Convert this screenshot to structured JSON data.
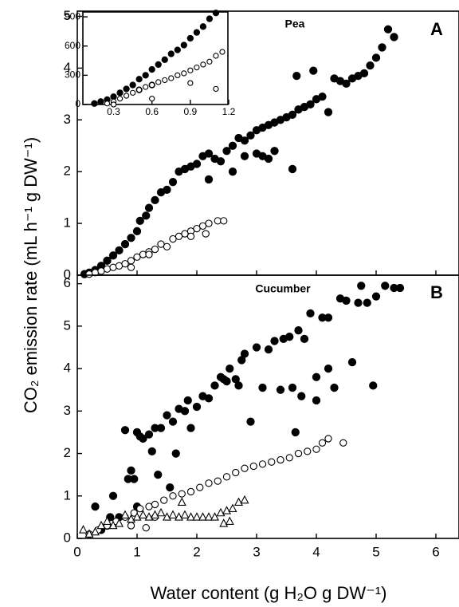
{
  "chart_data": [
    {
      "type": "scatter",
      "title": "Pea",
      "panel_label": "A",
      "xlim": [
        0,
        6.4
      ],
      "ylim": [
        0,
        5.1
      ],
      "xticks": [
        0,
        1,
        2,
        3,
        4,
        5,
        6
      ],
      "yticks": [
        0,
        1,
        2,
        3,
        4,
        5
      ],
      "series": [
        {
          "marker": "filled-circle",
          "color": "#000000",
          "x": [
            0.12,
            0.2,
            0.3,
            0.4,
            0.5,
            0.6,
            0.7,
            0.8,
            0.9,
            1.0,
            1.05,
            1.15,
            1.2,
            1.3,
            1.4,
            1.5,
            1.6,
            1.7,
            1.8,
            1.9,
            2.0,
            2.1,
            2.2,
            2.3,
            2.4,
            2.5,
            2.6,
            2.7,
            2.8,
            2.9,
            3.0,
            3.1,
            3.2,
            3.3,
            3.4,
            3.5,
            3.6,
            3.7,
            3.8,
            3.9,
            4.0,
            4.1,
            4.2,
            4.3,
            4.4,
            4.5,
            4.6,
            4.7,
            4.8,
            4.9,
            5.0,
            5.1,
            5.2,
            5.3,
            3.0,
            3.1,
            3.2,
            2.2,
            2.6,
            2.8,
            3.3,
            3.6,
            3.67,
            3.95
          ],
          "values": [
            0.02,
            0.05,
            0.1,
            0.18,
            0.28,
            0.38,
            0.48,
            0.6,
            0.72,
            0.85,
            1.05,
            1.15,
            1.3,
            1.45,
            1.6,
            1.65,
            1.8,
            2.0,
            2.05,
            2.1,
            2.15,
            2.3,
            2.35,
            2.25,
            2.2,
            2.4,
            2.5,
            2.65,
            2.6,
            2.7,
            2.8,
            2.85,
            2.9,
            2.95,
            3.0,
            3.05,
            3.1,
            3.2,
            3.25,
            3.3,
            3.4,
            3.45,
            3.15,
            3.8,
            3.75,
            3.7,
            3.8,
            3.85,
            3.9,
            4.05,
            4.2,
            4.4,
            4.75,
            4.6,
            2.35,
            2.3,
            2.25,
            1.85,
            2.0,
            2.3,
            2.4,
            2.05,
            3.85,
            3.95
          ]
        },
        {
          "marker": "open-circle",
          "color": "#000000",
          "x": [
            0.2,
            0.3,
            0.4,
            0.5,
            0.6,
            0.7,
            0.8,
            0.9,
            1.0,
            1.1,
            1.2,
            1.3,
            1.4,
            1.5,
            1.6,
            1.7,
            1.8,
            1.9,
            2.0,
            2.1,
            2.2,
            2.35,
            2.45,
            2.15,
            1.9,
            0.9,
            1.2
          ],
          "values": [
            0.02,
            0.05,
            0.08,
            0.12,
            0.15,
            0.18,
            0.22,
            0.28,
            0.35,
            0.4,
            0.45,
            0.5,
            0.6,
            0.55,
            0.7,
            0.75,
            0.8,
            0.85,
            0.9,
            0.95,
            1.0,
            1.05,
            1.05,
            0.8,
            0.75,
            0.15,
            0.4
          ]
        }
      ]
    },
    {
      "type": "scatter",
      "title": "Cucumber",
      "panel_label": "B",
      "x_label": "Water content (g H₂O g  DW⁻¹)",
      "y_label": "CO₂ emission rate (mL h⁻¹ g DW⁻¹)",
      "xlim": [
        0,
        6.4
      ],
      "ylim": [
        0,
        6.2
      ],
      "xticks": [
        0,
        1,
        2,
        3,
        4,
        5,
        6
      ],
      "yticks": [
        0,
        1,
        2,
        3,
        4,
        5,
        6
      ],
      "series": [
        {
          "marker": "filled-circle",
          "color": "#000000",
          "x": [
            0.3,
            0.4,
            0.5,
            0.6,
            0.7,
            0.8,
            0.85,
            0.9,
            0.95,
            1.0,
            1.05,
            1.1,
            1.2,
            1.25,
            1.3,
            1.35,
            1.4,
            1.5,
            1.55,
            1.6,
            1.7,
            1.8,
            1.85,
            1.9,
            2.0,
            2.1,
            2.2,
            2.3,
            2.4,
            2.45,
            2.5,
            2.55,
            2.65,
            2.7,
            2.75,
            2.8,
            2.9,
            3.0,
            3.1,
            3.2,
            3.3,
            3.4,
            3.45,
            3.55,
            3.6,
            3.7,
            3.8,
            3.9,
            4.0,
            4.1,
            4.2,
            4.3,
            4.4,
            4.5,
            4.6,
            4.7,
            4.75,
            4.85,
            4.95,
            5.0,
            5.15,
            5.3,
            5.4,
            3.65,
            3.75,
            4.0,
            4.2,
            1.0,
            0.55,
            1.65
          ],
          "values": [
            0.75,
            0.2,
            0.3,
            1.0,
            0.5,
            2.55,
            1.4,
            1.6,
            1.4,
            2.5,
            2.4,
            2.35,
            2.45,
            2.05,
            2.6,
            1.5,
            2.6,
            2.9,
            1.2,
            2.75,
            3.05,
            3.0,
            3.25,
            2.6,
            3.1,
            3.35,
            3.3,
            3.6,
            3.8,
            3.75,
            3.7,
            4.0,
            3.75,
            3.6,
            4.2,
            4.35,
            2.75,
            4.5,
            3.55,
            4.45,
            4.65,
            3.5,
            4.7,
            4.75,
            3.55,
            4.9,
            4.7,
            5.3,
            3.25,
            5.2,
            5.2,
            3.55,
            5.65,
            5.6,
            4.15,
            5.55,
            5.95,
            5.55,
            3.6,
            5.7,
            5.95,
            5.9,
            5.9,
            2.5,
            3.35,
            3.8,
            4.0,
            0.75,
            0.5,
            2.0
          ]
        },
        {
          "marker": "open-circle",
          "color": "#000000",
          "x": [
            0.2,
            0.35,
            0.5,
            0.65,
            0.8,
            0.95,
            1.05,
            1.2,
            1.3,
            1.45,
            1.6,
            1.75,
            1.9,
            2.05,
            2.2,
            2.35,
            2.5,
            2.65,
            2.8,
            2.95,
            3.1,
            3.25,
            3.4,
            3.55,
            3.7,
            3.85,
            4.0,
            4.1,
            4.2,
            4.45,
            1.15,
            1.3,
            0.9
          ],
          "values": [
            0.1,
            0.2,
            0.3,
            0.4,
            0.5,
            0.6,
            0.7,
            0.75,
            0.8,
            0.9,
            1.0,
            1.05,
            1.1,
            1.2,
            1.3,
            1.35,
            1.45,
            1.55,
            1.65,
            1.7,
            1.75,
            1.8,
            1.85,
            1.9,
            2.0,
            2.05,
            2.1,
            2.25,
            2.35,
            2.25,
            0.25,
            0.5,
            0.3
          ]
        },
        {
          "marker": "open-triangle",
          "color": "#000000",
          "x": [
            0.1,
            0.2,
            0.3,
            0.4,
            0.5,
            0.6,
            0.7,
            0.8,
            0.9,
            1.0,
            1.1,
            1.2,
            1.3,
            1.4,
            1.5,
            1.6,
            1.7,
            1.75,
            1.8,
            1.9,
            2.0,
            2.1,
            2.2,
            2.3,
            2.4,
            2.5,
            2.6,
            2.7,
            2.8,
            2.45,
            2.55
          ],
          "values": [
            0.2,
            0.1,
            0.15,
            0.3,
            0.4,
            0.3,
            0.35,
            0.55,
            0.45,
            0.5,
            0.55,
            0.5,
            0.55,
            0.6,
            0.5,
            0.55,
            0.5,
            0.85,
            0.55,
            0.5,
            0.5,
            0.5,
            0.5,
            0.5,
            0.6,
            0.65,
            0.7,
            0.85,
            0.9,
            0.35,
            0.4
          ]
        }
      ]
    },
    {
      "type": "scatter",
      "xlim": [
        0.06,
        1.2
      ],
      "ylim": [
        0,
        950
      ],
      "xticks": [
        0.3,
        0.6,
        0.9,
        1.2
      ],
      "yticks": [
        0,
        300,
        600,
        900
      ],
      "series": [
        {
          "marker": "filled-circle",
          "color": "#000000",
          "x": [
            0.15,
            0.2,
            0.25,
            0.3,
            0.35,
            0.4,
            0.45,
            0.5,
            0.55,
            0.6,
            0.65,
            0.7,
            0.75,
            0.8,
            0.85,
            0.9,
            0.95,
            1.0,
            1.05,
            1.1,
            0.5,
            0.6
          ],
          "values": [
            10,
            30,
            50,
            80,
            120,
            160,
            200,
            260,
            300,
            360,
            410,
            460,
            520,
            560,
            610,
            680,
            740,
            800,
            880,
            940,
            150,
            200
          ]
        },
        {
          "marker": "open-circle",
          "color": "#000000",
          "x": [
            0.25,
            0.3,
            0.35,
            0.4,
            0.45,
            0.5,
            0.55,
            0.6,
            0.65,
            0.7,
            0.75,
            0.8,
            0.85,
            0.9,
            0.95,
            1.0,
            1.05,
            1.1,
            1.15,
            0.3,
            0.6,
            0.9,
            1.1
          ],
          "values": [
            10,
            30,
            60,
            90,
            120,
            150,
            180,
            200,
            230,
            250,
            270,
            300,
            320,
            350,
            380,
            410,
            440,
            500,
            540,
            0,
            60,
            220,
            160
          ]
        }
      ]
    }
  ]
}
